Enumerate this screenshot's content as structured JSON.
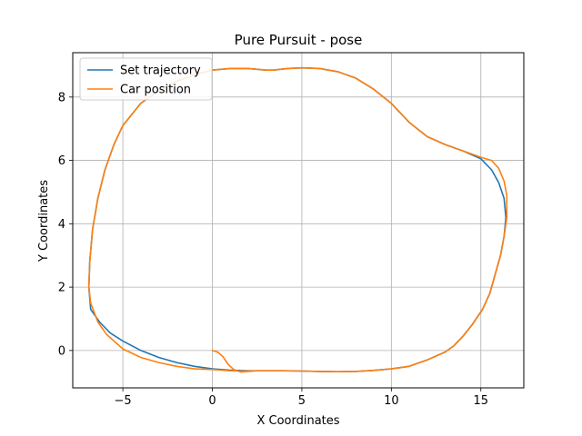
{
  "chart_data": {
    "type": "line",
    "title": "Pure Pursuit - pose",
    "xlabel": "X Coordinates",
    "ylabel": "Y Coordinates",
    "xlim": [
      -7.8,
      17.4
    ],
    "ylim": [
      -1.18,
      9.4
    ],
    "xticks": [
      -5,
      0,
      5,
      10,
      15
    ],
    "yticks": [
      0,
      2,
      4,
      6,
      8
    ],
    "grid": true,
    "legend_position": "top-left",
    "series": [
      {
        "name": "Set trajectory",
        "color": "#1f77b4",
        "x": [
          3.4,
          4.2,
          5.0,
          6.0,
          7.0,
          8.0,
          9.0,
          10.0,
          11.0,
          12.0,
          13.0,
          14.0,
          15.0,
          15.6,
          16.0,
          16.3,
          16.4,
          16.3,
          16.1,
          15.8,
          15.5,
          15.1,
          14.5,
          14.0,
          13.5,
          13.0,
          12.0,
          11.0,
          10.0,
          9.0,
          8.0,
          7.0,
          6.0,
          5.0,
          4.0,
          3.0,
          2.0,
          1.0,
          0.0,
          -1.0,
          -2.0,
          -3.0,
          -4.0,
          -5.0,
          -5.7,
          -6.3,
          -6.8,
          -6.9,
          -6.85,
          -6.7,
          -6.4,
          -6.0,
          -5.5,
          -5.0,
          -4.0,
          -3.0,
          -2.0,
          -1.0,
          0.0,
          1.0,
          2.0,
          3.0,
          3.4
        ],
        "y": [
          8.85,
          8.9,
          8.92,
          8.9,
          8.8,
          8.6,
          8.25,
          7.8,
          7.2,
          6.75,
          6.5,
          6.3,
          6.05,
          5.7,
          5.3,
          4.8,
          4.2,
          3.6,
          3.0,
          2.4,
          1.8,
          1.3,
          0.8,
          0.45,
          0.15,
          -0.05,
          -0.3,
          -0.5,
          -0.58,
          -0.63,
          -0.66,
          -0.67,
          -0.66,
          -0.65,
          -0.64,
          -0.64,
          -0.64,
          -0.62,
          -0.58,
          -0.5,
          -0.38,
          -0.22,
          0.0,
          0.3,
          0.55,
          0.9,
          1.3,
          2.0,
          2.8,
          3.8,
          4.8,
          5.7,
          6.5,
          7.1,
          7.8,
          8.2,
          8.5,
          8.7,
          8.85,
          8.9,
          8.9,
          8.85,
          8.85
        ]
      },
      {
        "name": "Car position",
        "color": "#ff7f0e",
        "x": [
          0.0,
          0.3,
          0.6,
          0.9,
          1.2,
          1.6,
          2.0,
          2.5,
          3.0,
          4.0,
          5.0,
          6.0,
          7.0,
          8.0,
          9.0,
          10.0,
          11.0,
          12.0,
          13.0,
          13.5,
          14.0,
          14.5,
          15.1,
          15.5,
          15.8,
          16.1,
          16.3,
          16.45,
          16.45,
          16.3,
          16.0,
          15.6,
          15.0,
          14.0,
          13.0,
          12.0,
          11.0,
          10.0,
          9.0,
          8.0,
          7.0,
          6.0,
          5.0,
          4.2,
          3.4,
          3.0,
          2.0,
          1.0,
          0.0,
          -1.0,
          -2.0,
          -3.0,
          -4.0,
          -5.0,
          -5.5,
          -6.0,
          -6.4,
          -6.7,
          -6.85,
          -6.9,
          -6.8,
          -6.4,
          -5.9,
          -5.3,
          -5.0,
          -4.0,
          -3.0,
          -2.0,
          -1.0,
          0.0,
          0.5,
          1.0,
          1.5,
          2.0,
          2.5,
          3.0,
          4.0,
          5.0
        ],
        "y": [
          0.0,
          -0.05,
          -0.2,
          -0.45,
          -0.6,
          -0.68,
          -0.66,
          -0.64,
          -0.64,
          -0.64,
          -0.65,
          -0.66,
          -0.67,
          -0.66,
          -0.63,
          -0.58,
          -0.5,
          -0.3,
          -0.05,
          0.15,
          0.45,
          0.8,
          1.3,
          1.8,
          2.4,
          3.0,
          3.6,
          4.2,
          4.9,
          5.35,
          5.75,
          6.0,
          6.1,
          6.3,
          6.5,
          6.75,
          7.2,
          7.8,
          8.25,
          8.6,
          8.8,
          8.9,
          8.92,
          8.9,
          8.85,
          8.85,
          8.9,
          8.9,
          8.85,
          8.7,
          8.5,
          8.2,
          7.8,
          7.1,
          6.5,
          5.7,
          4.8,
          3.8,
          2.8,
          2.0,
          1.5,
          0.9,
          0.5,
          0.2,
          0.05,
          -0.22,
          -0.38,
          -0.5,
          -0.58,
          -0.6,
          -0.62,
          -0.64,
          -0.65,
          -0.65,
          -0.64,
          -0.64,
          -0.64,
          -0.65
        ]
      }
    ]
  }
}
